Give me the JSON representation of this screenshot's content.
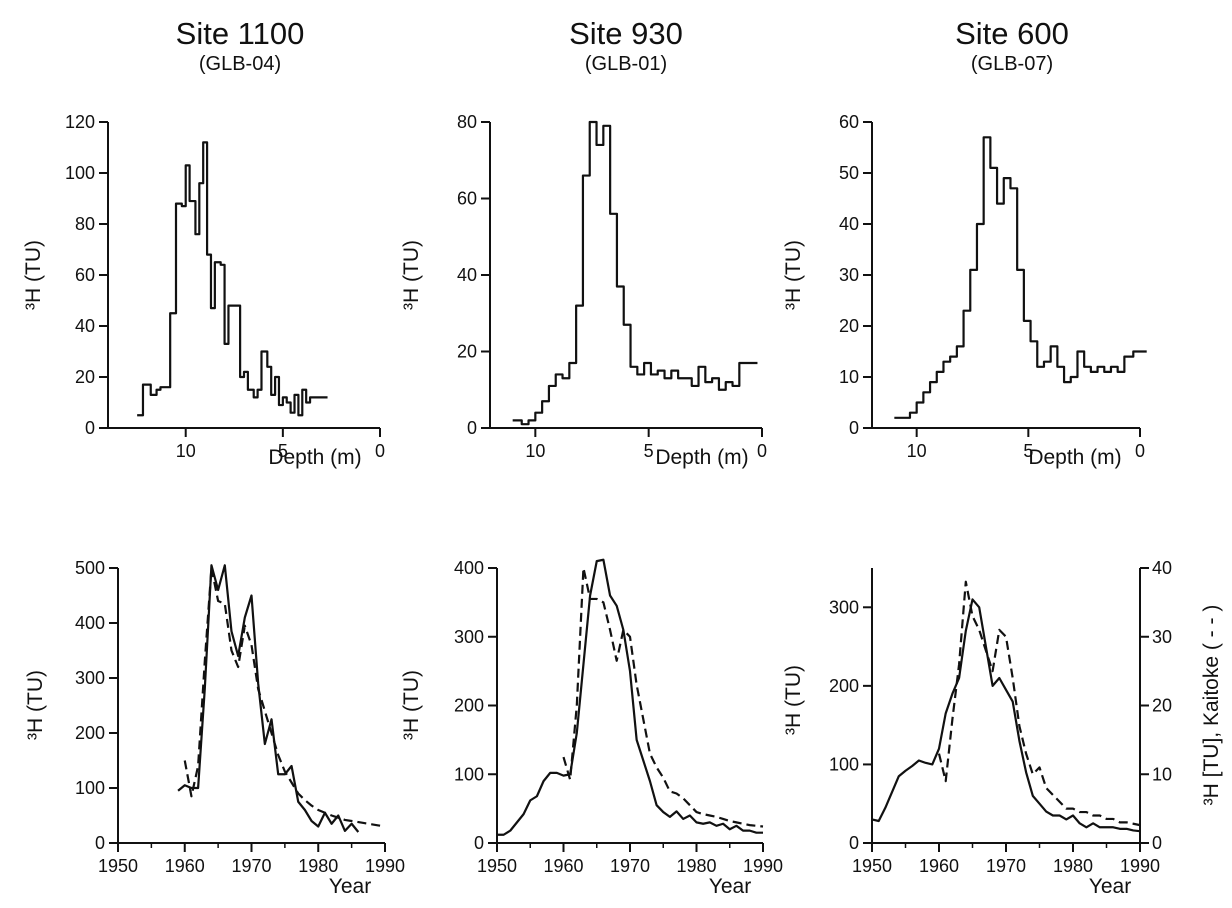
{
  "sites": [
    {
      "title": "Site 1100",
      "subtitle": "(GLB-04)"
    },
    {
      "title": "Site 930",
      "subtitle": "(GLB-01)"
    },
    {
      "title": "Site 600",
      "subtitle": "(GLB-07)"
    }
  ],
  "chart_data": [
    {
      "type": "line",
      "panel": "Site 1100 depth profile",
      "step": true,
      "xlabel": "Depth (m)",
      "ylabel": "³H (TU)",
      "xlim": [
        14,
        0
      ],
      "xticks": [
        10,
        5,
        0
      ],
      "ylim": [
        0,
        120
      ],
      "yticks": [
        0,
        20,
        40,
        60,
        80,
        100,
        120
      ],
      "series": [
        {
          "style": "solid",
          "x": [
            12.5,
            12.2,
            11.8,
            11.5,
            11.3,
            11.1,
            10.8,
            10.5,
            10.2,
            10.0,
            9.8,
            9.5,
            9.3,
            9.1,
            8.9,
            8.7,
            8.5,
            8.2,
            8.0,
            7.8,
            7.5,
            7.2,
            7.0,
            6.8,
            6.5,
            6.3,
            6.1,
            5.8,
            5.6,
            5.4,
            5.2,
            5.0,
            4.8,
            4.6,
            4.4,
            4.2,
            4.0,
            3.8,
            3.6,
            3.4,
            3.2,
            3.0
          ],
          "y": [
            5,
            17,
            13,
            15,
            16,
            16,
            45,
            88,
            87,
            103,
            89,
            76,
            96,
            112,
            68,
            47,
            65,
            64,
            33,
            48,
            48,
            20,
            22,
            15,
            12,
            15,
            30,
            24,
            13,
            20,
            9,
            12,
            10,
            6,
            13,
            5,
            15,
            10,
            12,
            12,
            12,
            12
          ]
        }
      ]
    },
    {
      "type": "line",
      "panel": "Site 930 depth profile",
      "step": true,
      "xlabel": "Depth (m)",
      "ylabel": "³H (TU)",
      "xlim": [
        12,
        0
      ],
      "xticks": [
        10,
        5,
        0
      ],
      "ylim": [
        0,
        80
      ],
      "yticks": [
        0,
        20,
        40,
        60,
        80
      ],
      "series": [
        {
          "style": "solid",
          "x": [
            11.0,
            10.6,
            10.3,
            10.0,
            9.7,
            9.4,
            9.1,
            8.8,
            8.5,
            8.2,
            7.9,
            7.6,
            7.3,
            7.0,
            6.7,
            6.4,
            6.1,
            5.8,
            5.5,
            5.2,
            4.9,
            4.6,
            4.3,
            4.0,
            3.7,
            3.4,
            3.1,
            2.8,
            2.5,
            2.2,
            1.9,
            1.6,
            1.3,
            1.0,
            0.7,
            0.5
          ],
          "y": [
            2,
            1,
            2,
            4,
            7,
            11,
            14,
            13,
            17,
            32,
            66,
            80,
            74,
            79,
            56,
            37,
            27,
            16,
            14,
            17,
            14,
            15,
            13,
            15,
            13,
            13,
            11,
            16,
            12,
            13,
            10,
            12,
            11,
            17,
            17,
            17
          ]
        }
      ]
    },
    {
      "type": "line",
      "panel": "Site 600 depth profile",
      "step": true,
      "xlabel": "Depth (m)",
      "ylabel": "³H (TU)",
      "xlim": [
        12,
        0
      ],
      "xticks": [
        10,
        5,
        0
      ],
      "ylim": [
        0,
        60
      ],
      "yticks": [
        0,
        10,
        20,
        30,
        40,
        50,
        60
      ],
      "series": [
        {
          "style": "solid",
          "x": [
            11.0,
            10.6,
            10.3,
            10.0,
            9.7,
            9.4,
            9.1,
            8.8,
            8.5,
            8.2,
            7.9,
            7.6,
            7.3,
            7.0,
            6.7,
            6.4,
            6.1,
            5.8,
            5.5,
            5.2,
            4.9,
            4.6,
            4.3,
            4.0,
            3.7,
            3.4,
            3.1,
            2.8,
            2.5,
            2.2,
            1.9,
            1.6,
            1.3,
            1.0,
            0.7,
            0.3,
            0.0
          ],
          "y": [
            2,
            2,
            3,
            5,
            7,
            9,
            11,
            13,
            14,
            16,
            23,
            31,
            40,
            57,
            51,
            44,
            49,
            47,
            31,
            21,
            17,
            12,
            13,
            16,
            12,
            9,
            10,
            15,
            12,
            11,
            12,
            11,
            12,
            11,
            14,
            15,
            15
          ]
        }
      ]
    },
    {
      "type": "line",
      "panel": "Site 1100 tritium vs year",
      "xlabel": "Year",
      "ylabel": "³H (TU)",
      "xlim": [
        1950,
        1990
      ],
      "xticks": [
        1950,
        1960,
        1970,
        1980,
        1990
      ],
      "ylim": [
        0,
        500
      ],
      "yticks": [
        0,
        100,
        200,
        300,
        400,
        500
      ],
      "series": [
        {
          "style": "solid",
          "x": [
            1959,
            1960,
            1961,
            1962,
            1963,
            1964,
            1965,
            1966,
            1967,
            1968,
            1969,
            1970,
            1971,
            1972,
            1973,
            1974,
            1975,
            1976,
            1977,
            1978,
            1979,
            1980,
            1981,
            1982,
            1983,
            1984,
            1985,
            1986
          ],
          "y": [
            95,
            105,
            100,
            100,
            280,
            505,
            460,
            505,
            385,
            340,
            410,
            450,
            290,
            180,
            225,
            125,
            125,
            140,
            75,
            60,
            40,
            30,
            55,
            35,
            50,
            22,
            35,
            20
          ]
        },
        {
          "style": "dashed",
          "x": [
            1960,
            1961,
            1962,
            1963,
            1964,
            1965,
            1966,
            1967,
            1968,
            1969,
            1970,
            1971,
            1972,
            1973,
            1974,
            1975,
            1976,
            1977,
            1978,
            1979,
            1980,
            1981,
            1982,
            1983,
            1984,
            1985,
            1986,
            1987,
            1988,
            1989,
            1990
          ],
          "y": [
            150,
            85,
            140,
            330,
            500,
            440,
            435,
            350,
            320,
            395,
            360,
            280,
            240,
            200,
            160,
            130,
            110,
            90,
            78,
            68,
            60,
            55,
            50,
            46,
            42,
            40,
            38,
            36,
            34,
            32,
            30
          ]
        }
      ]
    },
    {
      "type": "line",
      "panel": "Site 930 tritium vs year",
      "xlabel": "Year",
      "ylabel": "³H (TU)",
      "xlim": [
        1950,
        1990
      ],
      "xticks": [
        1950,
        1960,
        1970,
        1980,
        1990
      ],
      "ylim": [
        0,
        400
      ],
      "yticks": [
        0,
        100,
        200,
        300,
        400
      ],
      "series": [
        {
          "style": "solid",
          "x": [
            1950,
            1951,
            1952,
            1953,
            1954,
            1955,
            1956,
            1957,
            1958,
            1959,
            1960,
            1961,
            1962,
            1963,
            1964,
            1965,
            1966,
            1967,
            1968,
            1969,
            1970,
            1971,
            1972,
            1973,
            1974,
            1975,
            1976,
            1977,
            1978,
            1979,
            1980,
            1981,
            1982,
            1983,
            1984,
            1985,
            1986,
            1987,
            1988,
            1989,
            1990
          ],
          "y": [
            12,
            12,
            18,
            30,
            42,
            62,
            68,
            90,
            102,
            102,
            98,
            100,
            160,
            260,
            360,
            410,
            412,
            360,
            345,
            310,
            250,
            150,
            120,
            90,
            55,
            45,
            38,
            46,
            35,
            40,
            30,
            28,
            30,
            25,
            28,
            20,
            25,
            18,
            18,
            15,
            15
          ]
        },
        {
          "style": "dashed",
          "x": [
            1960,
            1961,
            1962,
            1963,
            1964,
            1965,
            1966,
            1967,
            1968,
            1969,
            1970,
            1971,
            1972,
            1973,
            1974,
            1975,
            1976,
            1977,
            1978,
            1979,
            1980,
            1981,
            1982,
            1983,
            1984,
            1985,
            1986,
            1987,
            1988,
            1989,
            1990
          ],
          "y": [
            125,
            92,
            200,
            400,
            355,
            355,
            350,
            310,
            265,
            310,
            300,
            230,
            180,
            130,
            110,
            95,
            75,
            72,
            65,
            55,
            45,
            42,
            40,
            38,
            35,
            32,
            30,
            28,
            26,
            25,
            24
          ]
        }
      ]
    },
    {
      "type": "line",
      "panel": "Site 600 tritium vs year",
      "xlabel": "Year",
      "ylabel": "³H (TU)",
      "y2label": "³H [TU], Kaitoke ( - - )",
      "xlim": [
        1950,
        1990
      ],
      "xticks": [
        1950,
        1960,
        1970,
        1980,
        1990
      ],
      "ylim": [
        0,
        350
      ],
      "yticks": [
        0,
        100,
        200,
        300
      ],
      "y2lim": [
        0,
        40
      ],
      "y2ticks": [
        0,
        10,
        20,
        30,
        40
      ],
      "series": [
        {
          "style": "solid",
          "axis": "left",
          "x": [
            1950,
            1951,
            1952,
            1953,
            1954,
            1955,
            1956,
            1957,
            1958,
            1959,
            1960,
            1961,
            1962,
            1963,
            1964,
            1965,
            1966,
            1967,
            1968,
            1969,
            1970,
            1971,
            1972,
            1973,
            1974,
            1975,
            1976,
            1977,
            1978,
            1979,
            1980,
            1981,
            1982,
            1983,
            1984,
            1985,
            1986,
            1987,
            1988,
            1989,
            1990
          ],
          "y": [
            30,
            28,
            45,
            65,
            85,
            92,
            98,
            105,
            102,
            100,
            120,
            165,
            190,
            210,
            270,
            310,
            300,
            250,
            200,
            210,
            195,
            180,
            130,
            90,
            60,
            50,
            40,
            35,
            35,
            30,
            35,
            25,
            20,
            25,
            20,
            20,
            20,
            18,
            18,
            16,
            15
          ]
        },
        {
          "style": "dashed",
          "axis": "right",
          "x": [
            1960,
            1961,
            1962,
            1963,
            1964,
            1965,
            1966,
            1967,
            1968,
            1969,
            1970,
            1971,
            1972,
            1973,
            1974,
            1975,
            1976,
            1977,
            1978,
            1979,
            1980,
            1981,
            1982,
            1983,
            1984,
            1985,
            1986,
            1987,
            1988,
            1989,
            1990
          ],
          "y": [
            13,
            9,
            18,
            26,
            38,
            33,
            31,
            28,
            25,
            31,
            30,
            24,
            17,
            13,
            10,
            11,
            8,
            7,
            6,
            5,
            5,
            4.5,
            4.5,
            4,
            4,
            3.5,
            3.5,
            3,
            3,
            2.8,
            2.6
          ]
        }
      ]
    }
  ]
}
